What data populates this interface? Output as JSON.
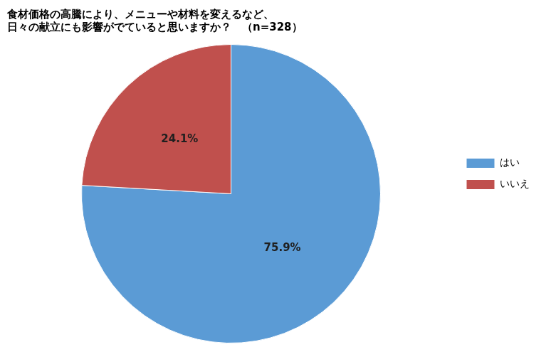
{
  "chart_data": {
    "type": "pie",
    "title": [
      "食材価格の高騰により、メニューや材料を変えるなど、",
      "日々の献立にも影響がでていると思いますか？　（n=328）"
    ],
    "categories": [
      "はい",
      "いいえ"
    ],
    "values": [
      75.9,
      24.1
    ],
    "value_labels": [
      "75.9%",
      "24.1%"
    ],
    "colors": [
      "#5B9BD5",
      "#C0504D"
    ],
    "data_labels": true,
    "legend": "right"
  }
}
